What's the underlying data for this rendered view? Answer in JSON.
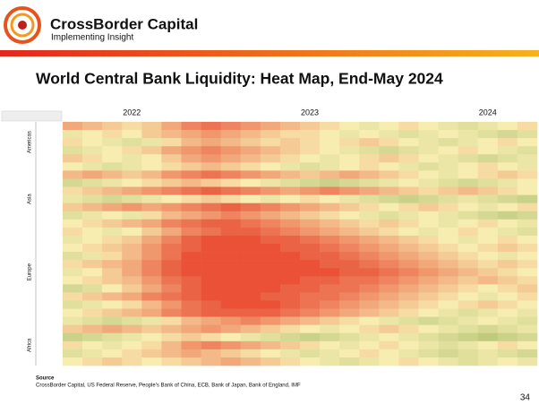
{
  "header": {
    "brand": "CrossBorder Capital",
    "tagline": "Implementing Insight"
  },
  "title": "World Central Bank Liquidity: Heat Map, End-May 2024",
  "chart_data": {
    "type": "heatmap",
    "x": [
      null,
      null,
      null,
      "2022",
      null,
      null,
      null,
      null,
      null,
      null,
      null,
      null,
      "2023",
      null,
      null,
      null,
      null,
      null,
      null,
      null,
      null,
      "2024",
      null,
      null
    ],
    "y": [
      null,
      null,
      "Americas",
      null,
      null,
      null,
      null,
      null,
      null,
      "Asia",
      null,
      null,
      null,
      null,
      null,
      null,
      null,
      null,
      "Europe",
      null,
      null,
      null,
      null,
      null,
      null,
      null,
      null,
      "Africa",
      null,
      null
    ],
    "zlim": [
      0,
      100
    ],
    "colors": [
      "#e8402a",
      "#f7edb0",
      "#86a64e"
    ],
    "values": [
      [
        30,
        35,
        40,
        45,
        40,
        30,
        20,
        15,
        20,
        25,
        30,
        35,
        40,
        45,
        50,
        55,
        50,
        45,
        50,
        55,
        60,
        55,
        50,
        45
      ],
      [
        55,
        50,
        45,
        50,
        40,
        35,
        30,
        25,
        30,
        35,
        40,
        45,
        45,
        50,
        55,
        50,
        55,
        60,
        55,
        50,
        55,
        60,
        65,
        60
      ],
      [
        45,
        50,
        55,
        60,
        55,
        45,
        35,
        30,
        35,
        40,
        45,
        40,
        45,
        50,
        45,
        40,
        45,
        50,
        55,
        60,
        55,
        50,
        45,
        50
      ],
      [
        60,
        55,
        50,
        45,
        40,
        30,
        25,
        20,
        25,
        30,
        35,
        40,
        45,
        50,
        55,
        60,
        65,
        60,
        55,
        50,
        45,
        50,
        55,
        60
      ],
      [
        40,
        45,
        50,
        55,
        50,
        40,
        30,
        25,
        30,
        35,
        40,
        45,
        50,
        55,
        50,
        45,
        40,
        45,
        50,
        55,
        60,
        65,
        60,
        55
      ],
      [
        50,
        55,
        60,
        55,
        50,
        45,
        40,
        35,
        40,
        45,
        50,
        55,
        60,
        55,
        50,
        45,
        50,
        55,
        60,
        55,
        50,
        45,
        50,
        55
      ],
      [
        35,
        30,
        35,
        40,
        35,
        25,
        20,
        15,
        20,
        25,
        30,
        35,
        40,
        35,
        30,
        35,
        40,
        45,
        50,
        55,
        50,
        45,
        40,
        45
      ],
      [
        65,
        60,
        55,
        50,
        45,
        40,
        35,
        40,
        45,
        50,
        55,
        60,
        65,
        70,
        65,
        60,
        55,
        50,
        55,
        60,
        65,
        60,
        55,
        50
      ],
      [
        45,
        40,
        35,
        30,
        25,
        20,
        15,
        10,
        15,
        20,
        25,
        30,
        25,
        20,
        25,
        30,
        35,
        40,
        45,
        40,
        35,
        40,
        45,
        50
      ],
      [
        55,
        60,
        65,
        60,
        55,
        50,
        45,
        40,
        45,
        50,
        55,
        50,
        45,
        50,
        55,
        60,
        65,
        70,
        65,
        60,
        55,
        60,
        65,
        70
      ],
      [
        40,
        35,
        30,
        25,
        30,
        25,
        20,
        15,
        10,
        15,
        20,
        25,
        30,
        35,
        40,
        45,
        50,
        45,
        40,
        45,
        50,
        55,
        50,
        45
      ],
      [
        60,
        55,
        50,
        55,
        45,
        35,
        30,
        25,
        20,
        25,
        30,
        35,
        40,
        45,
        50,
        55,
        60,
        55,
        50,
        55,
        60,
        65,
        70,
        65
      ],
      [
        50,
        45,
        40,
        35,
        30,
        20,
        15,
        10,
        10,
        15,
        20,
        25,
        30,
        35,
        40,
        45,
        40,
        45,
        50,
        55,
        50,
        45,
        50,
        55
      ],
      [
        45,
        50,
        55,
        50,
        40,
        30,
        20,
        15,
        10,
        10,
        15,
        20,
        25,
        30,
        35,
        40,
        45,
        50,
        55,
        50,
        45,
        50,
        55,
        60
      ],
      [
        55,
        50,
        45,
        40,
        30,
        20,
        10,
        5,
        5,
        5,
        10,
        10,
        15,
        20,
        25,
        30,
        35,
        40,
        45,
        50,
        55,
        50,
        45,
        50
      ],
      [
        50,
        45,
        40,
        35,
        25,
        15,
        10,
        5,
        5,
        5,
        5,
        10,
        10,
        15,
        20,
        25,
        30,
        35,
        40,
        45,
        50,
        45,
        40,
        45
      ],
      [
        60,
        55,
        45,
        35,
        25,
        15,
        5,
        5,
        5,
        5,
        5,
        5,
        10,
        10,
        15,
        20,
        25,
        30,
        35,
        40,
        45,
        50,
        55,
        50
      ],
      [
        45,
        40,
        35,
        30,
        20,
        10,
        5,
        5,
        5,
        5,
        5,
        5,
        5,
        10,
        10,
        15,
        20,
        25,
        30,
        35,
        40,
        45,
        40,
        45
      ],
      [
        55,
        50,
        40,
        30,
        20,
        10,
        5,
        5,
        5,
        5,
        5,
        5,
        5,
        5,
        10,
        10,
        15,
        20,
        25,
        30,
        35,
        40,
        45,
        50
      ],
      [
        50,
        45,
        40,
        35,
        25,
        15,
        10,
        5,
        5,
        5,
        5,
        5,
        10,
        10,
        15,
        15,
        20,
        25,
        30,
        35,
        40,
        35,
        40,
        45
      ],
      [
        65,
        60,
        50,
        40,
        30,
        20,
        10,
        5,
        5,
        5,
        5,
        10,
        10,
        15,
        15,
        20,
        25,
        30,
        35,
        40,
        45,
        50,
        45,
        40
      ],
      [
        45,
        40,
        35,
        30,
        20,
        15,
        10,
        5,
        5,
        5,
        10,
        10,
        15,
        15,
        20,
        25,
        30,
        35,
        40,
        45,
        50,
        55,
        50,
        45
      ],
      [
        60,
        55,
        50,
        45,
        35,
        25,
        15,
        10,
        5,
        5,
        5,
        10,
        15,
        20,
        25,
        30,
        35,
        40,
        45,
        50,
        45,
        40,
        45,
        50
      ],
      [
        50,
        45,
        40,
        35,
        30,
        20,
        15,
        10,
        10,
        10,
        10,
        15,
        20,
        25,
        30,
        35,
        40,
        45,
        50,
        55,
        60,
        55,
        50,
        55
      ],
      [
        55,
        60,
        65,
        60,
        55,
        45,
        35,
        30,
        25,
        20,
        25,
        30,
        35,
        40,
        45,
        50,
        55,
        60,
        65,
        60,
        55,
        50,
        55,
        60
      ],
      [
        40,
        35,
        30,
        35,
        40,
        35,
        30,
        25,
        30,
        35,
        40,
        45,
        50,
        55,
        50,
        45,
        40,
        45,
        50,
        55,
        60,
        65,
        60,
        55
      ],
      [
        70,
        65,
        60,
        55,
        50,
        45,
        40,
        45,
        50,
        55,
        60,
        65,
        70,
        65,
        60,
        55,
        50,
        55,
        60,
        65,
        70,
        75,
        70,
        65
      ],
      [
        45,
        50,
        55,
        50,
        45,
        35,
        25,
        20,
        25,
        30,
        35,
        40,
        45,
        50,
        55,
        50,
        45,
        50,
        55,
        60,
        55,
        50,
        45,
        50
      ],
      [
        60,
        55,
        50,
        45,
        40,
        35,
        30,
        35,
        40,
        45,
        50,
        55,
        60,
        55,
        50,
        45,
        50,
        55,
        60,
        65,
        60,
        55,
        60,
        65
      ],
      [
        50,
        45,
        40,
        45,
        50,
        45,
        40,
        35,
        30,
        35,
        40,
        45,
        50,
        55,
        60,
        55,
        50,
        45,
        50,
        55,
        60,
        55,
        50,
        55
      ]
    ]
  },
  "source": {
    "heading": "Source",
    "text": "CrossBorder Capital, US Federal Reserve, People's Bank of China, ECB, Bank of Japan, Bank of England, IMF"
  },
  "page_number": "34"
}
